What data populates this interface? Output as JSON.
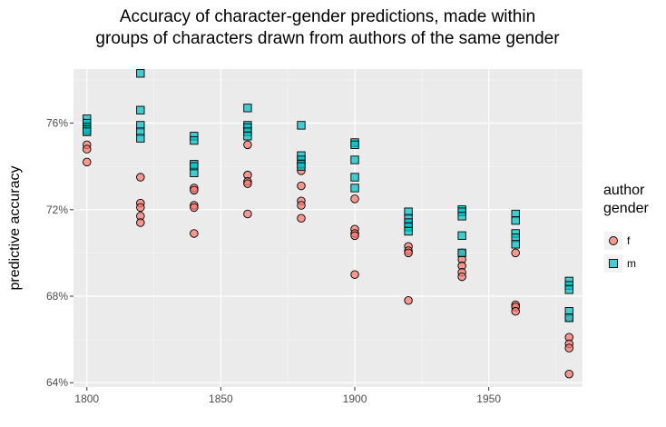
{
  "chart_data": {
    "type": "scatter",
    "title_lines": [
      "Accuracy of character-gender predictions, made within",
      "groups of characters drawn from authors of the same gender"
    ],
    "xlabel": "",
    "ylabel": "predictive accuracy",
    "xlim": [
      1795,
      1985
    ],
    "ylim": [
      0.638,
      0.785
    ],
    "x_ticks": [
      1800,
      1850,
      1900,
      1950
    ],
    "x_tick_labels": [
      "1800",
      "1850",
      "1900",
      "1950"
    ],
    "y_ticks": [
      0.64,
      0.68,
      0.72,
      0.76
    ],
    "y_tick_labels": [
      "64%",
      "68%",
      "72%",
      "76%"
    ],
    "grid": true,
    "legend": {
      "title_lines": [
        "author",
        "gender"
      ],
      "position": "right"
    },
    "series": [
      {
        "name": "f",
        "marker": "circle",
        "color": "#F8766D",
        "points": [
          [
            1800,
            0.756
          ],
          [
            1800,
            0.75
          ],
          [
            1800,
            0.748
          ],
          [
            1800,
            0.742
          ],
          [
            1820,
            0.735
          ],
          [
            1820,
            0.723
          ],
          [
            1820,
            0.721
          ],
          [
            1820,
            0.717
          ],
          [
            1820,
            0.714
          ],
          [
            1840,
            0.73
          ],
          [
            1840,
            0.729
          ],
          [
            1840,
            0.722
          ],
          [
            1840,
            0.721
          ],
          [
            1840,
            0.709
          ],
          [
            1860,
            0.75
          ],
          [
            1860,
            0.736
          ],
          [
            1860,
            0.733
          ],
          [
            1860,
            0.732
          ],
          [
            1860,
            0.718
          ],
          [
            1880,
            0.738
          ],
          [
            1880,
            0.731
          ],
          [
            1880,
            0.724
          ],
          [
            1880,
            0.722
          ],
          [
            1880,
            0.716
          ],
          [
            1900,
            0.725
          ],
          [
            1900,
            0.711
          ],
          [
            1900,
            0.709
          ],
          [
            1900,
            0.708
          ],
          [
            1900,
            0.69
          ],
          [
            1920,
            0.703
          ],
          [
            1920,
            0.701
          ],
          [
            1920,
            0.7
          ],
          [
            1920,
            0.678
          ],
          [
            1940,
            0.7
          ],
          [
            1940,
            0.697
          ],
          [
            1940,
            0.694
          ],
          [
            1940,
            0.691
          ],
          [
            1940,
            0.689
          ],
          [
            1960,
            0.7
          ],
          [
            1960,
            0.676
          ],
          [
            1960,
            0.675
          ],
          [
            1960,
            0.673
          ],
          [
            1980,
            0.67
          ],
          [
            1980,
            0.661
          ],
          [
            1980,
            0.658
          ],
          [
            1980,
            0.656
          ],
          [
            1980,
            0.644
          ]
        ]
      },
      {
        "name": "m",
        "marker": "square",
        "color": "#00BFC4",
        "points": [
          [
            1800,
            0.762
          ],
          [
            1800,
            0.76
          ],
          [
            1800,
            0.758
          ],
          [
            1800,
            0.757
          ],
          [
            1800,
            0.756
          ],
          [
            1820,
            0.783
          ],
          [
            1820,
            0.766
          ],
          [
            1820,
            0.759
          ],
          [
            1820,
            0.756
          ],
          [
            1820,
            0.753
          ],
          [
            1840,
            0.754
          ],
          [
            1840,
            0.752
          ],
          [
            1840,
            0.741
          ],
          [
            1840,
            0.74
          ],
          [
            1840,
            0.737
          ],
          [
            1860,
            0.767
          ],
          [
            1860,
            0.759
          ],
          [
            1860,
            0.758
          ],
          [
            1860,
            0.756
          ],
          [
            1860,
            0.754
          ],
          [
            1880,
            0.759
          ],
          [
            1880,
            0.745
          ],
          [
            1880,
            0.743
          ],
          [
            1880,
            0.741
          ],
          [
            1880,
            0.74
          ],
          [
            1900,
            0.751
          ],
          [
            1900,
            0.75
          ],
          [
            1900,
            0.743
          ],
          [
            1900,
            0.735
          ],
          [
            1900,
            0.73
          ],
          [
            1920,
            0.719
          ],
          [
            1920,
            0.716
          ],
          [
            1920,
            0.714
          ],
          [
            1920,
            0.712
          ],
          [
            1920,
            0.71
          ],
          [
            1940,
            0.72
          ],
          [
            1940,
            0.719
          ],
          [
            1940,
            0.717
          ],
          [
            1940,
            0.708
          ],
          [
            1940,
            0.7
          ],
          [
            1960,
            0.718
          ],
          [
            1960,
            0.715
          ],
          [
            1960,
            0.709
          ],
          [
            1960,
            0.707
          ],
          [
            1960,
            0.704
          ],
          [
            1980,
            0.687
          ],
          [
            1980,
            0.685
          ],
          [
            1980,
            0.683
          ],
          [
            1980,
            0.673
          ],
          [
            1980,
            0.67
          ]
        ]
      }
    ]
  }
}
